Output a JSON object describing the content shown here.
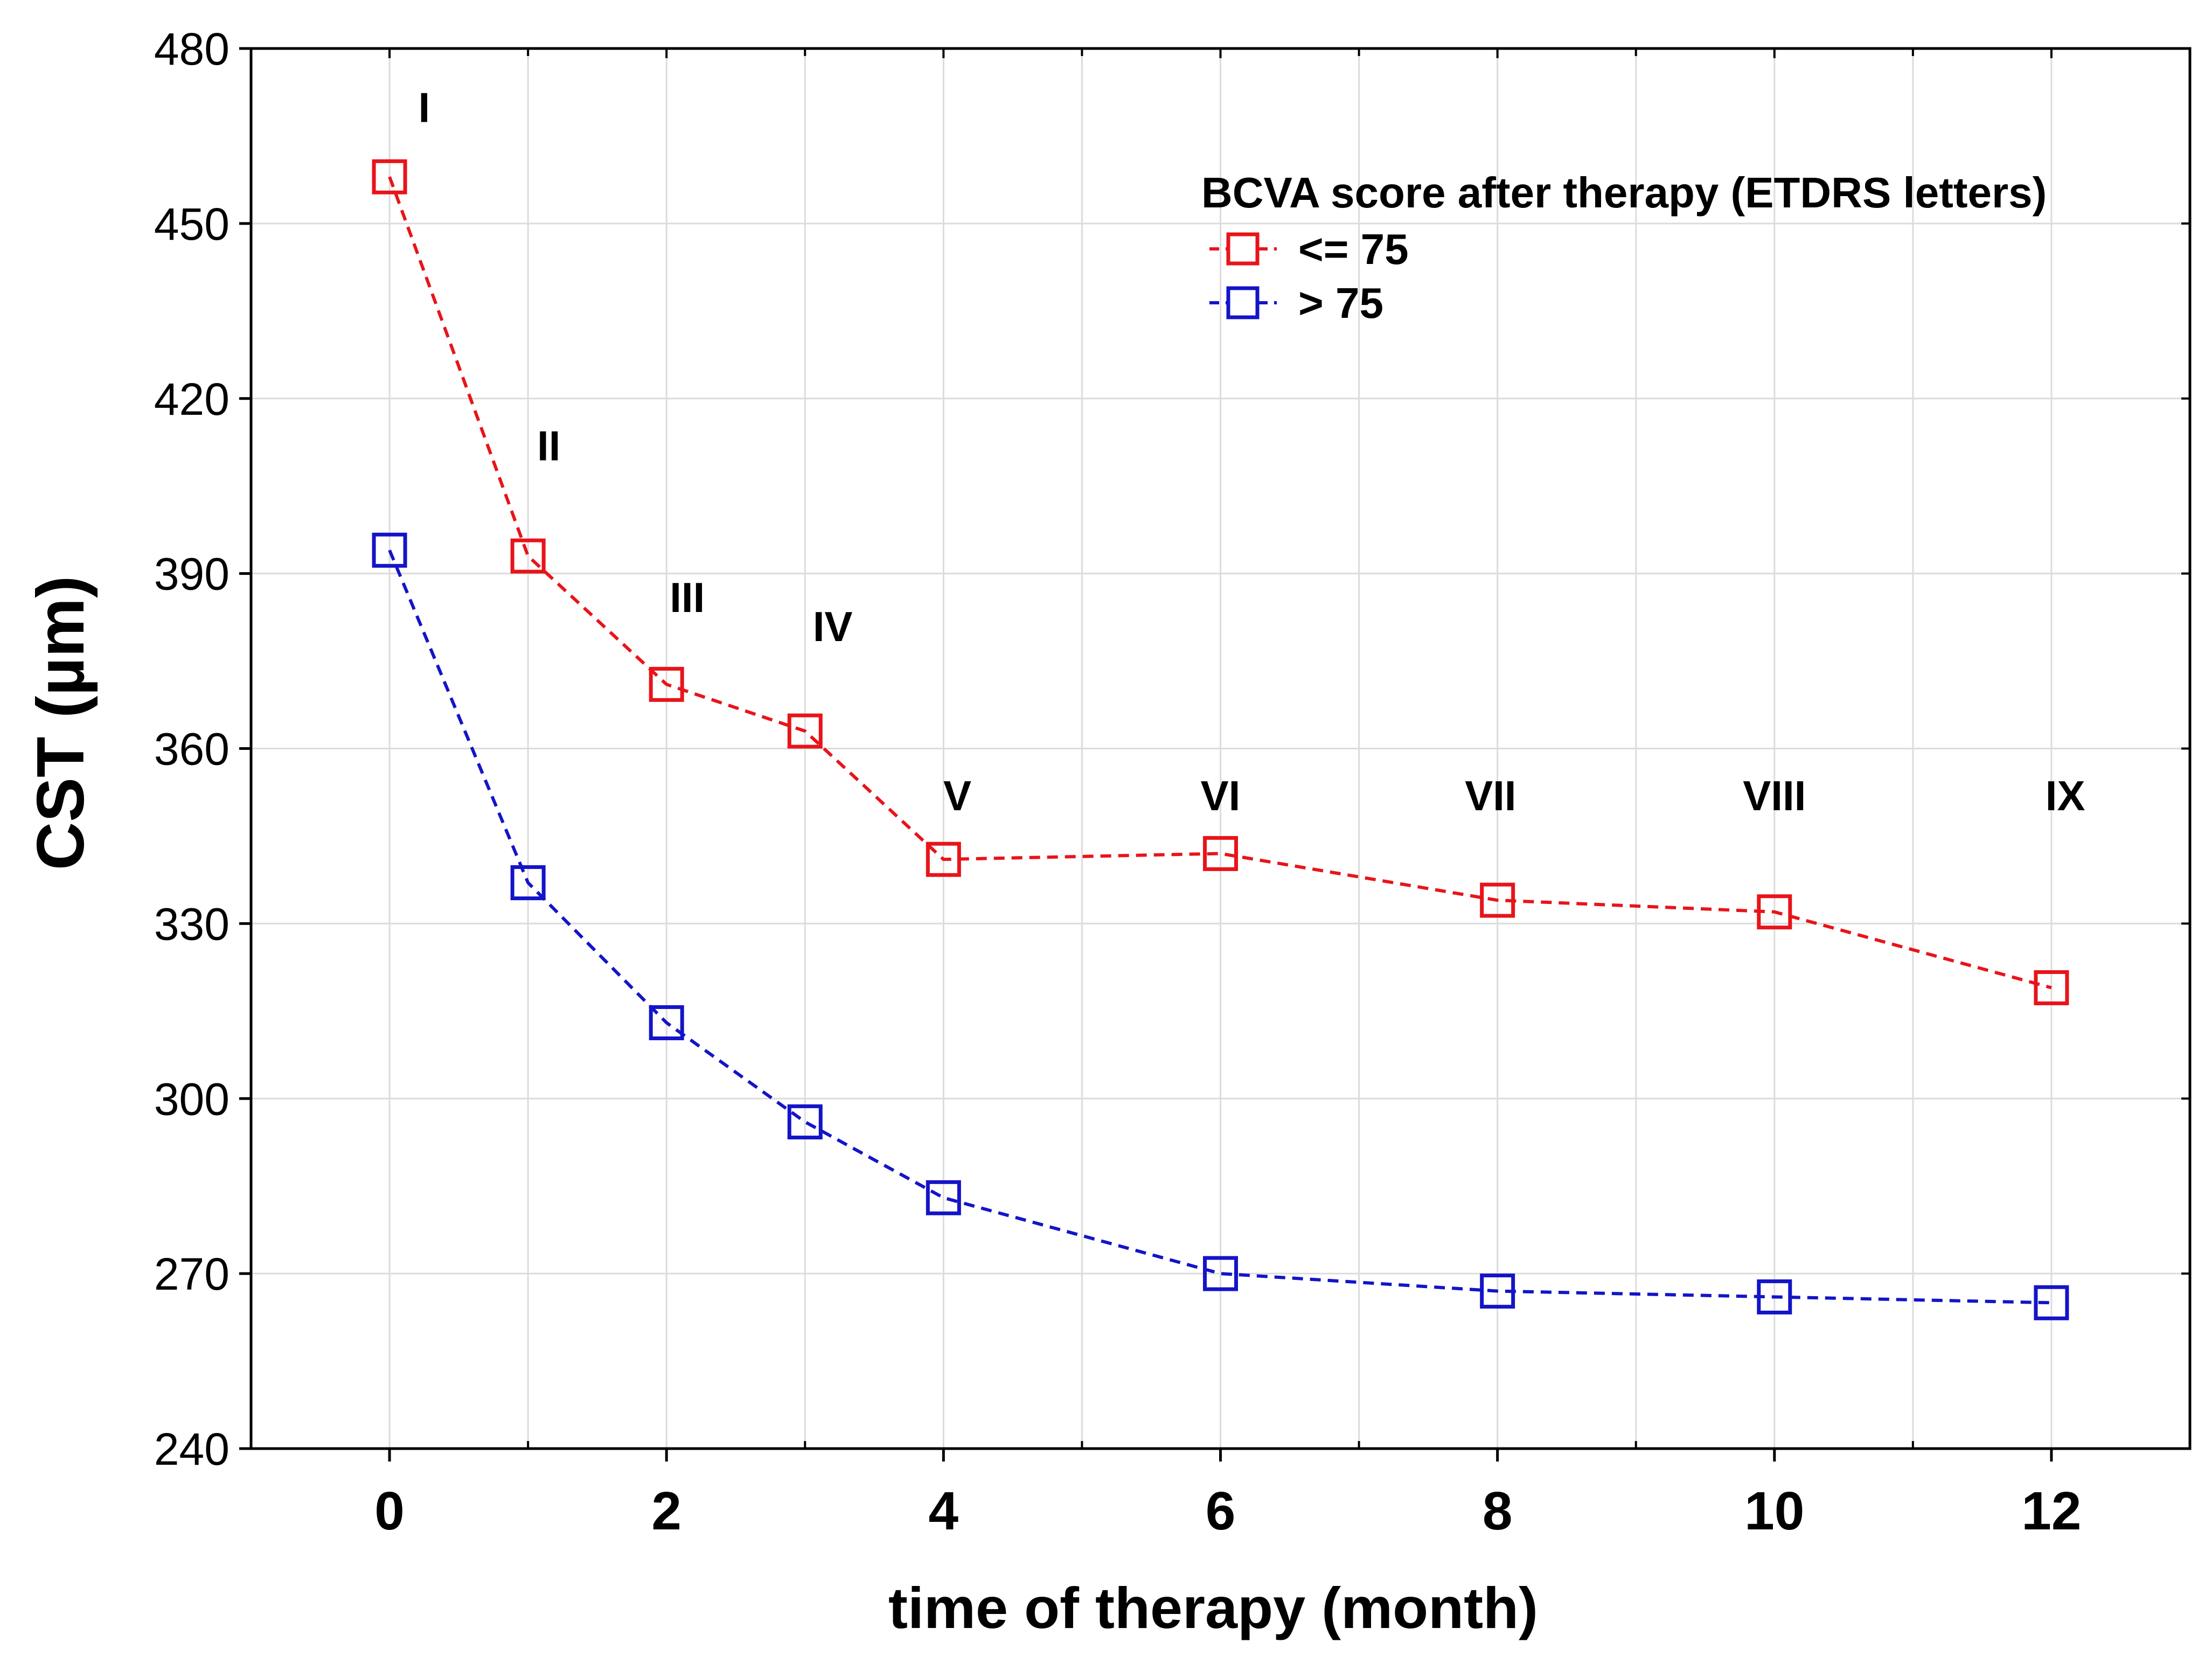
{
  "chart_data": {
    "type": "line",
    "xlabel": "time of therapy (month)",
    "ylabel": "CST (µm)",
    "xlim": [
      -1,
      13
    ],
    "ylim": [
      240,
      480
    ],
    "x_ticks": [
      0,
      2,
      4,
      6,
      8,
      10,
      12
    ],
    "x_minor_ticks": [
      1,
      3,
      5,
      7,
      9,
      11
    ],
    "y_ticks": [
      240,
      270,
      300,
      330,
      360,
      390,
      420,
      450,
      480
    ],
    "grid": true,
    "legend": {
      "title": "BCVA score after therapy (ETDRS letters)",
      "placement": "top-right",
      "entries": [
        "<= 75",
        "> 75"
      ]
    },
    "series": [
      {
        "name": "<= 75",
        "color": "#e8141a",
        "marker": "square-open",
        "line_style": "dashed",
        "x": [
          0,
          1,
          2,
          3,
          4,
          6,
          8,
          10,
          12
        ],
        "y": [
          458,
          393,
          371,
          363,
          341,
          342,
          334,
          332,
          319
        ]
      },
      {
        "name": "> 75",
        "color": "#1414c8",
        "marker": "square-open",
        "line_style": "dashed",
        "x": [
          0,
          1,
          2,
          3,
          4,
          6,
          8,
          10,
          12
        ],
        "y": [
          394,
          337,
          313,
          296,
          283,
          270,
          267,
          266,
          265
        ]
      }
    ],
    "annotations": [
      {
        "text": "I",
        "x": 0.25,
        "y": 470
      },
      {
        "text": "II",
        "x": 1.15,
        "y": 412
      },
      {
        "text": "III",
        "x": 2.15,
        "y": 386
      },
      {
        "text": "IV",
        "x": 3.2,
        "y": 381
      },
      {
        "text": "V",
        "x": 4.1,
        "y": 352
      },
      {
        "text": "VI",
        "x": 6.0,
        "y": 352
      },
      {
        "text": "VII",
        "x": 7.95,
        "y": 352
      },
      {
        "text": "VIII",
        "x": 10.0,
        "y": 352
      },
      {
        "text": "IX",
        "x": 12.1,
        "y": 352
      }
    ]
  }
}
